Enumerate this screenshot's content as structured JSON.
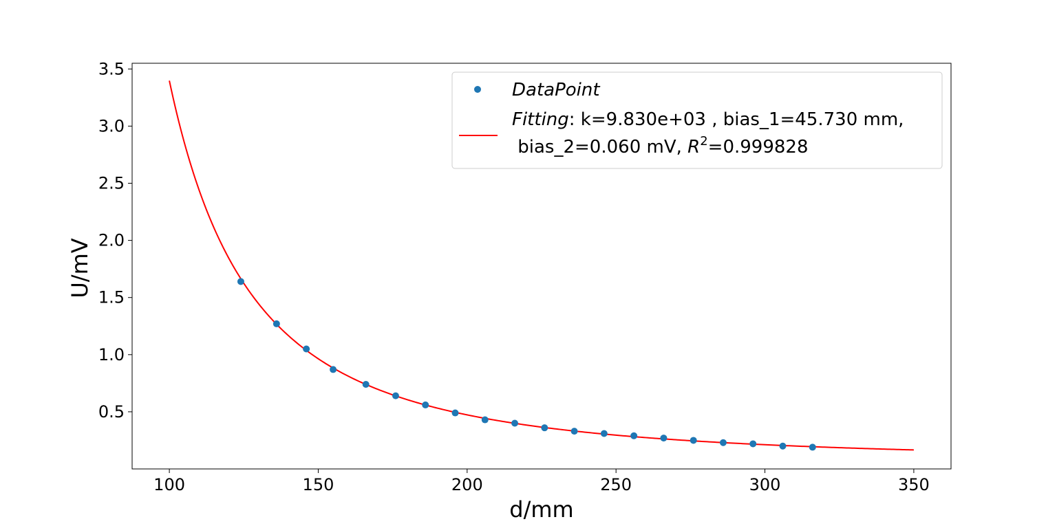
{
  "chart_data": {
    "type": "scatter",
    "title": "",
    "xlabel": "d/mm",
    "ylabel": "U/mV",
    "xlim": [
      87.5,
      362.5
    ],
    "ylim": [
      0.0,
      3.55
    ],
    "xticks": [
      100,
      150,
      200,
      250,
      300,
      350
    ],
    "xtick_labels": [
      "100",
      "150",
      "200",
      "250",
      "300",
      "350"
    ],
    "yticks": [
      0.5,
      1.0,
      1.5,
      2.0,
      2.5,
      3.0,
      3.5
    ],
    "ytick_labels": [
      "0.5",
      "1.0",
      "1.5",
      "2.0",
      "2.5",
      "3.0",
      "3.5"
    ],
    "grid": false,
    "legend": {
      "position": "top-right",
      "scatter_label": "DataPoint",
      "fit_label_italic": "Fitting",
      "fit_label_line1": ": k=9.830e+03 ,  bias_1=45.730 mm,",
      "fit_label_line2a": " bias_2=0.060 mV, ",
      "fit_label_r": "R",
      "fit_label_sup": "2",
      "fit_label_line2b": "=0.999828"
    },
    "series": [
      {
        "name": "DataPoint",
        "kind": "scatter",
        "color": "#1f77b4",
        "x": [
          124,
          136,
          146,
          155,
          166,
          176,
          186,
          196,
          206,
          216,
          226,
          236,
          246,
          256,
          266,
          276,
          286,
          296,
          306,
          316
        ],
        "y": [
          1.64,
          1.27,
          1.05,
          0.87,
          0.74,
          0.64,
          0.56,
          0.49,
          0.43,
          0.4,
          0.36,
          0.33,
          0.31,
          0.29,
          0.27,
          0.25,
          0.23,
          0.22,
          0.2,
          0.19
        ]
      },
      {
        "name": "Fitting",
        "kind": "line",
        "color": "#ff0000",
        "model": "U = k/(d-bias_1)^2 + bias_2",
        "k": 9830,
        "bias_1": 45.73,
        "bias_2": 0.06,
        "x_range": [
          100,
          350
        ]
      }
    ]
  }
}
